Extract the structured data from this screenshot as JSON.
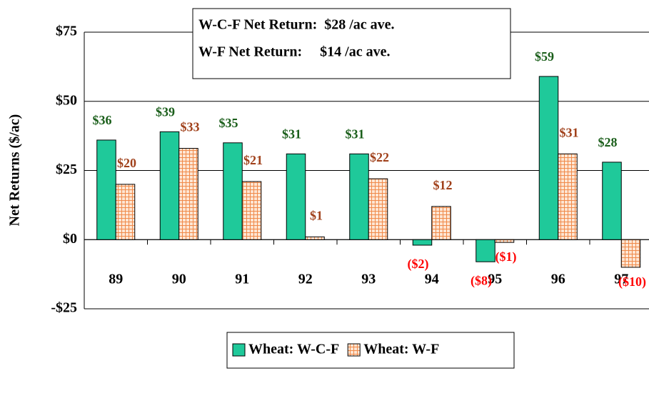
{
  "chart_data": {
    "type": "bar",
    "ylabel": "Net Returns ($/ac)",
    "annotations": [
      "W-C-F Net Return:  $28 /ac ave.",
      "W-F Net Return:     $14 /ac ave."
    ],
    "categories": [
      "89",
      "90",
      "91",
      "92",
      "93",
      "94",
      "95",
      "96",
      "97"
    ],
    "series": [
      {
        "name": "Wheat: W-C-F",
        "color": "#1fc99a",
        "pattern": false,
        "label_color": "#1a5e1a",
        "values": [
          36,
          39,
          35,
          31,
          31,
          -2,
          -8,
          59,
          28
        ],
        "value_labels": [
          "$36",
          "$39",
          "$35",
          "$31",
          "$31",
          "($2)",
          "($8)",
          "$59",
          "$28"
        ]
      },
      {
        "name": "Wheat: W-F",
        "color": "#f08a4a",
        "pattern": true,
        "label_color": "#a0401a",
        "values": [
          20,
          33,
          21,
          1,
          22,
          12,
          -1,
          31,
          -10
        ],
        "value_labels": [
          "$20",
          "$33",
          "$21",
          "$1",
          "$22",
          "$12",
          "($1)",
          "$31",
          "($10)"
        ]
      }
    ],
    "negative_label_color": "#ff0000",
    "ylim": [
      -25,
      75
    ],
    "yticks": [
      {
        "value": -25,
        "label": "-$25"
      },
      {
        "value": 0,
        "label": "$0"
      },
      {
        "value": 25,
        "label": "$25"
      },
      {
        "value": 50,
        "label": "$50"
      },
      {
        "value": 75,
        "label": "$75"
      }
    ],
    "grid": true,
    "legend": "bottom"
  }
}
